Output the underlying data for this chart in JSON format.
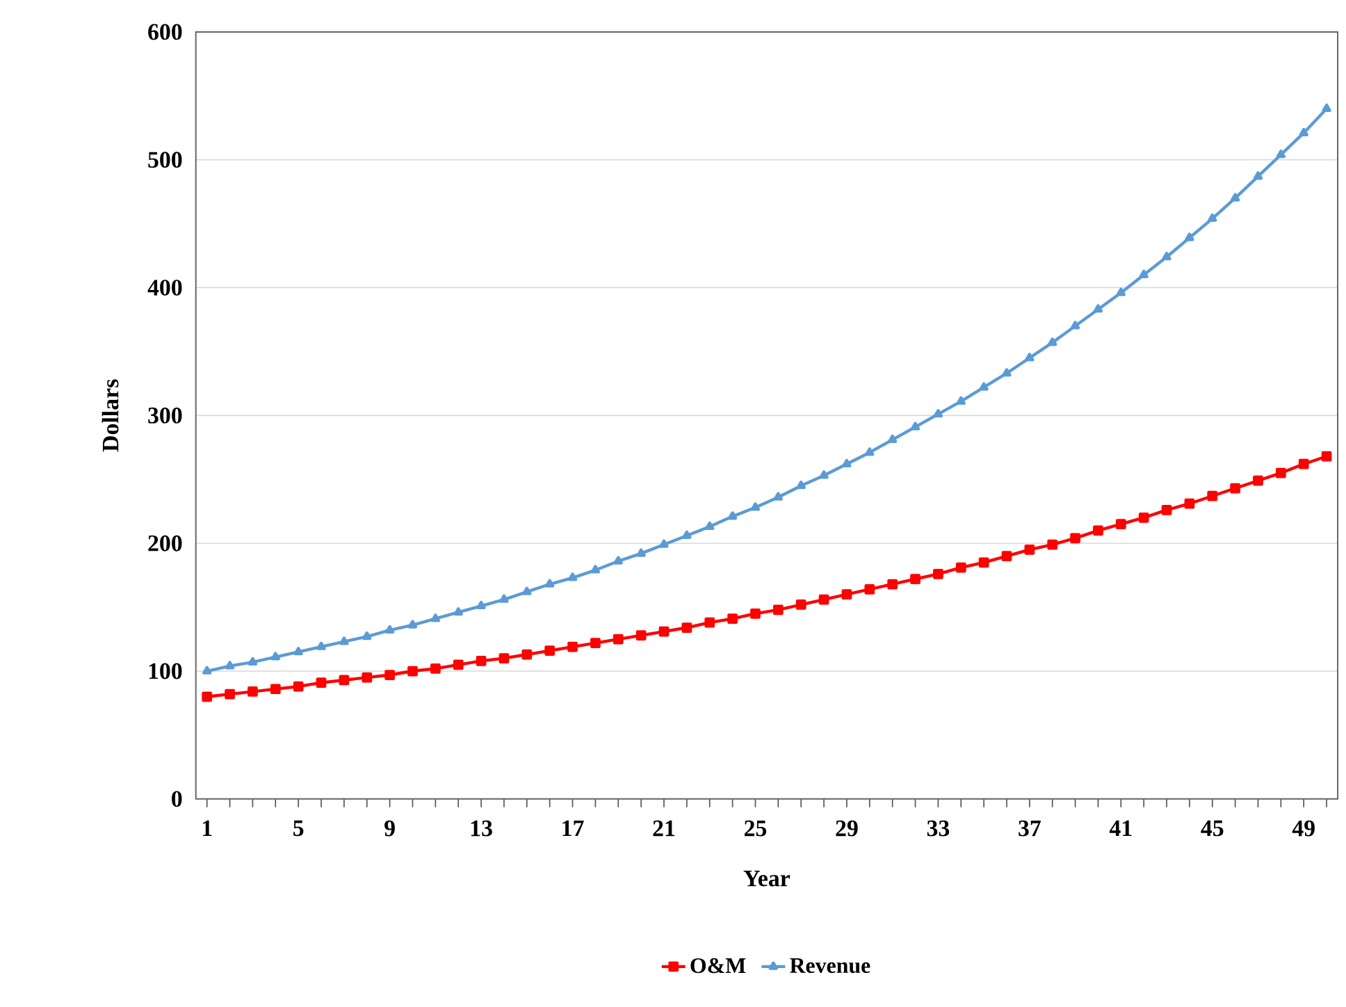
{
  "chart_data": {
    "type": "line",
    "xlabel": "Year",
    "ylabel": "Dollars",
    "categories": [
      "1",
      null,
      null,
      null,
      "5",
      null,
      null,
      null,
      "9",
      null,
      null,
      null,
      "13",
      null,
      null,
      null,
      "17",
      null,
      null,
      null,
      "21",
      null,
      null,
      null,
      "25",
      null,
      null,
      null,
      "29",
      null,
      null,
      null,
      "33",
      null,
      null,
      null,
      "37",
      null,
      null,
      null,
      "41",
      null,
      null,
      null,
      "45",
      null,
      null,
      null,
      "49",
      null
    ],
    "ylim": [
      0,
      600
    ],
    "yticks": [
      0,
      100,
      200,
      300,
      400,
      500,
      600
    ],
    "grid": "y",
    "legend": "bottom",
    "series": [
      {
        "name": "O&M",
        "color": "#ff0000",
        "marker": "square",
        "values": [
          80,
          82,
          84,
          86,
          88,
          91,
          93,
          95,
          97,
          100,
          102,
          105,
          108,
          110,
          113,
          116,
          119,
          122,
          125,
          128,
          131,
          134,
          138,
          141,
          145,
          148,
          152,
          156,
          160,
          164,
          168,
          172,
          176,
          181,
          185,
          190,
          195,
          199,
          204,
          210,
          215,
          220,
          226,
          231,
          237,
          243,
          249,
          255,
          262,
          268
        ]
      },
      {
        "name": "Revenue",
        "color": "#5b9bd5",
        "marker": "triangle",
        "values": [
          100,
          104,
          107,
          111,
          115,
          119,
          123,
          127,
          132,
          136,
          141,
          146,
          151,
          156,
          162,
          168,
          173,
          179,
          186,
          192,
          199,
          206,
          213,
          221,
          228,
          236,
          245,
          253,
          262,
          271,
          281,
          291,
          301,
          311,
          322,
          333,
          345,
          357,
          370,
          383,
          396,
          410,
          424,
          439,
          454,
          470,
          487,
          504,
          521,
          540
        ]
      }
    ]
  }
}
